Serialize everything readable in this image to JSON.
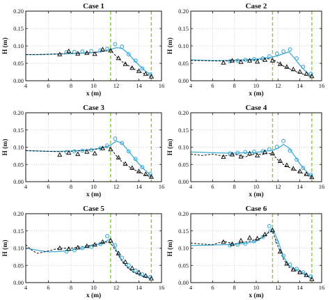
{
  "colors": {
    "cyan": "#3aaad7",
    "green": "#8cc63f",
    "black": "#111111",
    "grid": "#c8c8c8"
  },
  "chart_data": [
    {
      "type": "line",
      "title": "Case 1",
      "xlabel": "x (m)",
      "ylabel": "H (m)",
      "xlim": [
        4,
        16
      ],
      "ylim": [
        0,
        0.2
      ],
      "xticks": [
        4,
        6,
        8,
        10,
        12,
        14,
        16
      ],
      "yticks": [
        0.0,
        0.05,
        0.1,
        0.15,
        0.2
      ],
      "grid": true,
      "vlines": [
        11.5,
        15.1
      ],
      "series": [
        {
          "style": "cyan-line",
          "x": [
            4,
            5,
            6,
            7,
            8,
            9,
            10,
            10.5,
            11,
            11.5,
            12,
            12.5,
            13,
            13.5,
            14,
            14.5,
            15,
            15.1
          ],
          "y": [
            0.075,
            0.075,
            0.076,
            0.077,
            0.078,
            0.079,
            0.081,
            0.083,
            0.086,
            0.09,
            0.095,
            0.093,
            0.08,
            0.062,
            0.045,
            0.03,
            0.018,
            0.015
          ]
        },
        {
          "style": "black-dashed",
          "x": [
            4,
            5,
            6,
            7,
            8,
            9,
            10,
            10.5,
            11,
            11.5,
            12,
            12.5,
            13,
            13.5,
            14,
            14.5,
            15,
            15.1
          ],
          "y": [
            0.075,
            0.075,
            0.076,
            0.077,
            0.079,
            0.08,
            0.081,
            0.083,
            0.085,
            0.088,
            0.07,
            0.055,
            0.045,
            0.035,
            0.027,
            0.02,
            0.013,
            0.01
          ]
        },
        {
          "style": "cyan-circles",
          "x": [
            7.6,
            8.3,
            9.0,
            9.8,
            10.6,
            11.2,
            11.9,
            12.5,
            13.1,
            13.7,
            14.3,
            15.0
          ],
          "y": [
            0.082,
            0.083,
            0.084,
            0.085,
            0.087,
            0.092,
            0.105,
            0.098,
            0.076,
            0.058,
            0.035,
            0.018
          ]
        },
        {
          "style": "black-triangles",
          "x": [
            7.0,
            7.8,
            8.6,
            9.4,
            10.1,
            10.8,
            11.5,
            12.2,
            12.8,
            13.4,
            14.0,
            14.6,
            15.1
          ],
          "y": [
            0.076,
            0.085,
            0.078,
            0.08,
            0.077,
            0.09,
            0.087,
            0.065,
            0.048,
            0.037,
            0.028,
            0.02,
            0.012
          ]
        }
      ]
    },
    {
      "type": "line",
      "title": "Case 2",
      "xlabel": "x (m)",
      "ylabel": "H (m)",
      "xlim": [
        4,
        16
      ],
      "ylim": [
        0,
        0.2
      ],
      "xticks": [
        4,
        6,
        8,
        10,
        12,
        14,
        16
      ],
      "yticks": [
        0.0,
        0.05,
        0.1,
        0.15,
        0.2
      ],
      "grid": true,
      "vlines": [
        11.5,
        15.1
      ],
      "series": [
        {
          "style": "cyan-line",
          "x": [
            4,
            5,
            6,
            7,
            8,
            9,
            10,
            10.5,
            11,
            11.5,
            12,
            12.5,
            13,
            13.5,
            14,
            14.5,
            15,
            15.1
          ],
          "y": [
            0.06,
            0.059,
            0.058,
            0.058,
            0.059,
            0.06,
            0.062,
            0.064,
            0.066,
            0.068,
            0.072,
            0.078,
            0.083,
            0.065,
            0.045,
            0.028,
            0.015,
            0.012
          ]
        },
        {
          "style": "black-dashed",
          "x": [
            4,
            5,
            6,
            7,
            8,
            9,
            10,
            10.5,
            11,
            11.5,
            12,
            12.5,
            13,
            13.5,
            14,
            14.5,
            15,
            15.1
          ],
          "y": [
            0.058,
            0.058,
            0.057,
            0.057,
            0.058,
            0.059,
            0.06,
            0.061,
            0.063,
            0.062,
            0.052,
            0.042,
            0.035,
            0.028,
            0.022,
            0.017,
            0.012,
            0.01
          ]
        },
        {
          "style": "cyan-circles",
          "x": [
            7.6,
            8.3,
            9.0,
            9.8,
            10.6,
            11.2,
            11.9,
            12.5,
            13.1,
            13.7,
            14.3,
            15.0
          ],
          "y": [
            0.056,
            0.058,
            0.06,
            0.062,
            0.064,
            0.07,
            0.078,
            0.084,
            0.09,
            0.064,
            0.04,
            0.02
          ]
        },
        {
          "style": "black-triangles",
          "x": [
            7.0,
            7.8,
            8.6,
            9.4,
            10.1,
            10.8,
            11.5,
            12.2,
            12.8,
            13.4,
            14.0,
            14.6,
            15.1
          ],
          "y": [
            0.052,
            0.058,
            0.054,
            0.058,
            0.055,
            0.06,
            0.058,
            0.048,
            0.04,
            0.033,
            0.026,
            0.02,
            0.013
          ]
        }
      ]
    },
    {
      "type": "line",
      "title": "Case 3",
      "xlabel": "x (m)",
      "ylabel": "H (m)",
      "xlim": [
        4,
        16
      ],
      "ylim": [
        0,
        0.2
      ],
      "xticks": [
        4,
        6,
        8,
        10,
        12,
        14,
        16
      ],
      "yticks": [
        0.0,
        0.05,
        0.1,
        0.15,
        0.2
      ],
      "grid": true,
      "vlines": [
        11.5,
        15.1
      ],
      "series": [
        {
          "style": "cyan-line",
          "x": [
            4,
            5,
            6,
            7,
            8,
            9,
            10,
            10.5,
            11,
            11.5,
            12,
            12.5,
            13,
            13.5,
            14,
            14.5,
            15,
            15.1
          ],
          "y": [
            0.09,
            0.089,
            0.088,
            0.088,
            0.089,
            0.091,
            0.094,
            0.097,
            0.101,
            0.106,
            0.118,
            0.112,
            0.092,
            0.072,
            0.052,
            0.035,
            0.02,
            0.016
          ]
        },
        {
          "style": "black-dashed",
          "x": [
            4,
            5,
            6,
            7,
            8,
            9,
            10,
            10.5,
            11,
            11.5,
            12,
            12.5,
            13,
            13.5,
            14,
            14.5,
            15,
            15.1
          ],
          "y": [
            0.09,
            0.089,
            0.088,
            0.087,
            0.088,
            0.09,
            0.093,
            0.096,
            0.1,
            0.098,
            0.075,
            0.058,
            0.046,
            0.036,
            0.028,
            0.021,
            0.014,
            0.012
          ]
        },
        {
          "style": "cyan-circles",
          "x": [
            7.6,
            8.3,
            9.0,
            9.8,
            10.6,
            11.2,
            11.9,
            12.5,
            13.1,
            13.7,
            14.3,
            15.0
          ],
          "y": [
            0.086,
            0.088,
            0.09,
            0.092,
            0.097,
            0.105,
            0.125,
            0.112,
            0.088,
            0.066,
            0.042,
            0.022
          ]
        },
        {
          "style": "black-triangles",
          "x": [
            7.0,
            7.8,
            8.6,
            9.4,
            10.1,
            10.8,
            11.5,
            12.2,
            12.8,
            13.4,
            14.0,
            14.6,
            15.1
          ],
          "y": [
            0.078,
            0.084,
            0.08,
            0.087,
            0.082,
            0.097,
            0.094,
            0.07,
            0.052,
            0.04,
            0.03,
            0.022,
            0.014
          ]
        }
      ]
    },
    {
      "type": "line",
      "title": "Case 4",
      "xlabel": "x (m)",
      "ylabel": "H (m)",
      "xlim": [
        4,
        16
      ],
      "ylim": [
        0,
        0.2
      ],
      "xticks": [
        4,
        6,
        8,
        10,
        12,
        14,
        16
      ],
      "yticks": [
        0.0,
        0.05,
        0.1,
        0.15,
        0.2
      ],
      "grid": true,
      "vlines": [
        11.5,
        15.1
      ],
      "series": [
        {
          "style": "cyan-line",
          "x": [
            4,
            5,
            6,
            7,
            8,
            9,
            10,
            10.5,
            11,
            11.5,
            12,
            12.5,
            13,
            13.5,
            14,
            14.5,
            15,
            15.1
          ],
          "y": [
            0.086,
            0.085,
            0.084,
            0.083,
            0.083,
            0.084,
            0.085,
            0.087,
            0.089,
            0.091,
            0.097,
            0.108,
            0.098,
            0.076,
            0.052,
            0.033,
            0.018,
            0.014
          ]
        },
        {
          "style": "black-dashed",
          "x": [
            4,
            5,
            6,
            7,
            8,
            9,
            10,
            10.5,
            11,
            11.5,
            12,
            12.5,
            13,
            13.5,
            14,
            14.5,
            15,
            15.1
          ],
          "y": [
            0.08,
            0.076,
            0.08,
            0.074,
            0.08,
            0.072,
            0.082,
            0.078,
            0.083,
            0.08,
            0.063,
            0.05,
            0.042,
            0.035,
            0.028,
            0.021,
            0.014,
            0.011
          ]
        },
        {
          "style": "cyan-circles",
          "x": [
            7.6,
            8.3,
            9.0,
            9.8,
            10.6,
            11.2,
            11.9,
            12.5,
            13.1,
            13.7,
            14.3,
            15.0
          ],
          "y": [
            0.082,
            0.084,
            0.086,
            0.087,
            0.088,
            0.094,
            0.101,
            0.118,
            0.09,
            0.064,
            0.04,
            0.02
          ]
        },
        {
          "style": "black-triangles",
          "x": [
            7.0,
            7.8,
            8.6,
            9.4,
            10.1,
            10.8,
            11.5,
            12.2,
            12.8,
            13.4,
            14.0,
            14.6,
            15.1
          ],
          "y": [
            0.072,
            0.079,
            0.073,
            0.082,
            0.076,
            0.086,
            0.082,
            0.06,
            0.048,
            0.038,
            0.03,
            0.022,
            0.013
          ]
        }
      ]
    },
    {
      "type": "line",
      "title": "Case 5",
      "xlabel": "x (m)",
      "ylabel": "H (m)",
      "xlim": [
        4,
        16
      ],
      "ylim": [
        0,
        0.2
      ],
      "xticks": [
        4,
        6,
        8,
        10,
        12,
        14,
        16
      ],
      "yticks": [
        0.0,
        0.05,
        0.1,
        0.15,
        0.2
      ],
      "grid": true,
      "vlines": [
        11.5,
        15.1
      ],
      "series": [
        {
          "style": "cyan-line",
          "x": [
            4,
            5,
            6,
            7,
            8,
            9,
            10,
            10.5,
            11,
            11.5,
            12,
            12.5,
            13,
            13.5,
            14,
            14.5,
            15,
            15.1
          ],
          "y": [
            0.1,
            0.094,
            0.089,
            0.09,
            0.094,
            0.1,
            0.108,
            0.112,
            0.118,
            0.128,
            0.095,
            0.065,
            0.045,
            0.032,
            0.024,
            0.018,
            0.013,
            0.012
          ]
        },
        {
          "style": "black-dashed",
          "x": [
            4,
            4.5,
            5,
            5.5,
            6,
            7,
            8,
            9,
            10,
            10.5,
            11,
            11.5,
            12,
            12.5,
            13,
            13.5,
            14,
            14.5,
            15,
            15.1
          ],
          "y": [
            0.11,
            0.095,
            0.085,
            0.088,
            0.092,
            0.1,
            0.1,
            0.104,
            0.11,
            0.113,
            0.118,
            0.115,
            0.09,
            0.062,
            0.043,
            0.03,
            0.022,
            0.016,
            0.011,
            0.01
          ]
        },
        {
          "style": "cyan-circles",
          "x": [
            7.6,
            8.3,
            9.0,
            9.8,
            10.6,
            11.2,
            11.9,
            12.5,
            13.1,
            13.7,
            14.3,
            15.0
          ],
          "y": [
            0.09,
            0.094,
            0.1,
            0.104,
            0.112,
            0.135,
            0.108,
            0.072,
            0.05,
            0.035,
            0.024,
            0.016
          ]
        },
        {
          "style": "black-triangles",
          "x": [
            7.0,
            7.8,
            8.6,
            9.4,
            10.1,
            10.8,
            11.5,
            12.2,
            12.8,
            13.4,
            14.0,
            14.6,
            15.1
          ],
          "y": [
            0.1,
            0.098,
            0.102,
            0.106,
            0.11,
            0.118,
            0.122,
            0.085,
            0.06,
            0.042,
            0.03,
            0.02,
            0.012
          ]
        }
      ]
    },
    {
      "type": "line",
      "title": "Case 6",
      "xlabel": "x (m)",
      "ylabel": "H (m)",
      "xlim": [
        4,
        16
      ],
      "ylim": [
        0,
        0.2
      ],
      "xticks": [
        4,
        6,
        8,
        10,
        12,
        14,
        16
      ],
      "yticks": [
        0.0,
        0.05,
        0.1,
        0.15,
        0.2
      ],
      "grid": true,
      "vlines": [
        11.5,
        15.1
      ],
      "series": [
        {
          "style": "cyan-line",
          "x": [
            4,
            5,
            6,
            7,
            8,
            9,
            10,
            10.5,
            11,
            11.2,
            11.5,
            12,
            12.5,
            13,
            13.5,
            14,
            14.5,
            15,
            15.1
          ],
          "y": [
            0.108,
            0.108,
            0.109,
            0.11,
            0.111,
            0.114,
            0.12,
            0.13,
            0.142,
            0.152,
            0.158,
            0.12,
            0.075,
            0.05,
            0.04,
            0.035,
            0.025,
            0.014,
            0.012
          ]
        },
        {
          "style": "black-dashed",
          "x": [
            4,
            5,
            6,
            7,
            8,
            9,
            10,
            10.5,
            11,
            11.2,
            11.5,
            12,
            12.5,
            13,
            13.5,
            14,
            14.5,
            15,
            15.1
          ],
          "y": [
            0.115,
            0.112,
            0.11,
            0.12,
            0.112,
            0.118,
            0.124,
            0.13,
            0.14,
            0.148,
            0.15,
            0.105,
            0.068,
            0.045,
            0.035,
            0.03,
            0.022,
            0.012,
            0.01
          ]
        },
        {
          "style": "cyan-circles",
          "x": [
            7.6,
            8.3,
            9.0,
            9.8,
            10.6,
            11.2,
            11.9,
            12.5,
            13.1,
            13.7,
            14.3,
            15.0
          ],
          "y": [
            0.108,
            0.11,
            0.113,
            0.12,
            0.132,
            0.164,
            0.118,
            0.078,
            0.052,
            0.04,
            0.03,
            0.018
          ]
        },
        {
          "style": "black-triangles",
          "x": [
            7.0,
            7.8,
            8.6,
            9.4,
            10.1,
            10.8,
            11.5,
            12.2,
            12.8,
            13.4,
            14.0,
            14.6,
            15.1
          ],
          "y": [
            0.118,
            0.112,
            0.122,
            0.13,
            0.128,
            0.14,
            0.152,
            0.09,
            0.055,
            0.038,
            0.03,
            0.022,
            0.01
          ]
        }
      ]
    }
  ]
}
